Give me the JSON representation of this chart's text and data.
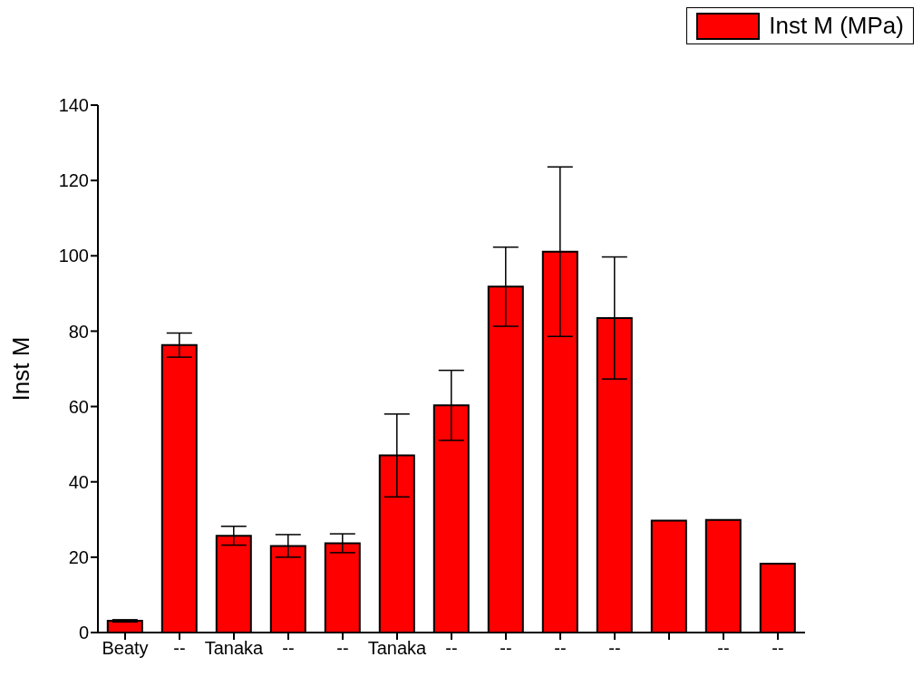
{
  "chart_data": {
    "type": "bar",
    "ylabel": "Inst M",
    "categories": [
      "Beaty",
      "--",
      "Tanaka",
      "--",
      "--",
      "Tanaka",
      "--",
      "--",
      "--",
      "--",
      null,
      "--",
      "--"
    ],
    "series": [
      {
        "name": "Inst M (MPa)",
        "color": "#ff0000",
        "values": [
          3.1,
          76.3,
          25.7,
          23.0,
          23.7,
          47.0,
          60.3,
          91.8,
          101.1,
          83.5,
          29.7,
          29.9,
          18.3
        ],
        "errors": [
          0.3,
          3.2,
          2.5,
          3.0,
          2.5,
          11.0,
          9.3,
          10.5,
          22.5,
          16.2,
          null,
          null,
          null
        ]
      }
    ],
    "ylim": [
      0,
      140
    ],
    "yticks": [
      0,
      20,
      40,
      60,
      80,
      100,
      120,
      140
    ],
    "grid": false,
    "legend": "top right"
  }
}
